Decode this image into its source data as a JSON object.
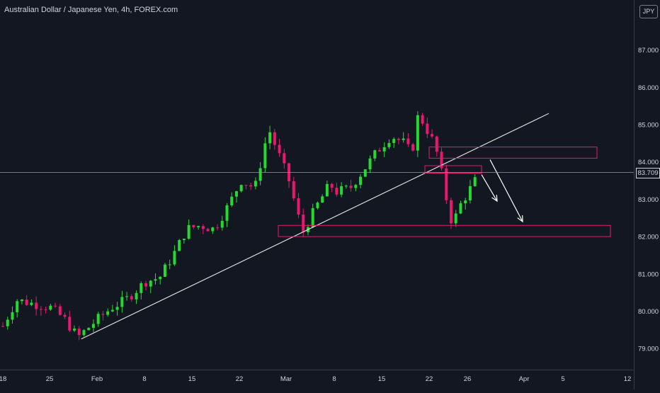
{
  "header": {
    "title": "Australian Dollar / Japanese Yen, 4h, FOREX.com",
    "currency_label": "JPY"
  },
  "colors": {
    "background": "#131722",
    "up_candle": "#26d930",
    "down_candle": "#e8186f",
    "zone_border": "#e8186f",
    "trendline": "#e6e6e6",
    "axis_text": "#d1d4dc"
  },
  "chart_data": {
    "type": "candlestick",
    "title": "Australian Dollar / Japanese Yen, 4h, FOREX.com",
    "y_axis": {
      "position": "right",
      "ticks": [
        "79.000",
        "80.000",
        "81.000",
        "82.000",
        "83.000",
        "84.000",
        "85.000",
        "86.000",
        "87.000"
      ],
      "ylim": [
        78.4,
        88.3
      ]
    },
    "x_axis": {
      "ticks": [
        "18",
        "25",
        "Feb",
        "8",
        "15",
        "22",
        "Mar",
        "8",
        "15",
        "22",
        "26",
        "Apr",
        "5",
        "12"
      ]
    },
    "current_price": "83.709",
    "approx_close_path": [
      [
        "18",
        79.6
      ],
      [
        "20",
        80.3
      ],
      [
        "25",
        80.1
      ],
      [
        "27",
        79.8
      ],
      [
        "29",
        79.3
      ],
      [
        "Feb",
        79.8
      ],
      [
        "3",
        80.1
      ],
      [
        "5",
        80.3
      ],
      [
        "8",
        80.8
      ],
      [
        "10",
        80.9
      ],
      [
        "12",
        81.5
      ],
      [
        "14",
        82.2
      ],
      [
        "16",
        82.3
      ],
      [
        "18",
        82.2
      ],
      [
        "20",
        82.8
      ],
      [
        "22",
        83.5
      ],
      [
        "24",
        83.3
      ],
      [
        "26",
        84.9
      ],
      [
        "27",
        83.5
      ],
      [
        "Mar",
        82.1
      ],
      [
        "2",
        82.8
      ],
      [
        "4",
        83.4
      ],
      [
        "6",
        83.2
      ],
      [
        "8",
        83.3
      ],
      [
        "10",
        83.8
      ],
      [
        "12",
        84.3
      ],
      [
        "14",
        84.7
      ],
      [
        "16",
        84.5
      ],
      [
        "18",
        84.2
      ],
      [
        "19",
        85.3
      ],
      [
        "20",
        84.6
      ],
      [
        "22",
        84.1
      ],
      [
        "23",
        83.1
      ],
      [
        "24",
        82.3
      ],
      [
        "25",
        82.8
      ],
      [
        "26",
        83.7
      ]
    ],
    "annotations": {
      "trendline": [
        [
          "29",
          79.2
        ],
        [
          "Apr 3",
          85.3
        ]
      ],
      "zones": [
        {
          "from": "Feb 28",
          "to": "Apr 10",
          "low": 82.0,
          "high": 82.3
        },
        {
          "from": "Mar 22",
          "to": "Apr 9",
          "low": 84.1,
          "high": 84.4
        },
        {
          "from": "Mar 21",
          "to": "Mar 28",
          "low": 83.7,
          "high": 83.9
        }
      ],
      "arrows": [
        {
          "from": [
            "Mar 27",
            83.7
          ],
          "to": [
            "Mar 29",
            82.95
          ]
        },
        {
          "from": [
            "Mar 29",
            84.1
          ],
          "to": [
            "Apr 1",
            82.4
          ]
        }
      ]
    }
  }
}
